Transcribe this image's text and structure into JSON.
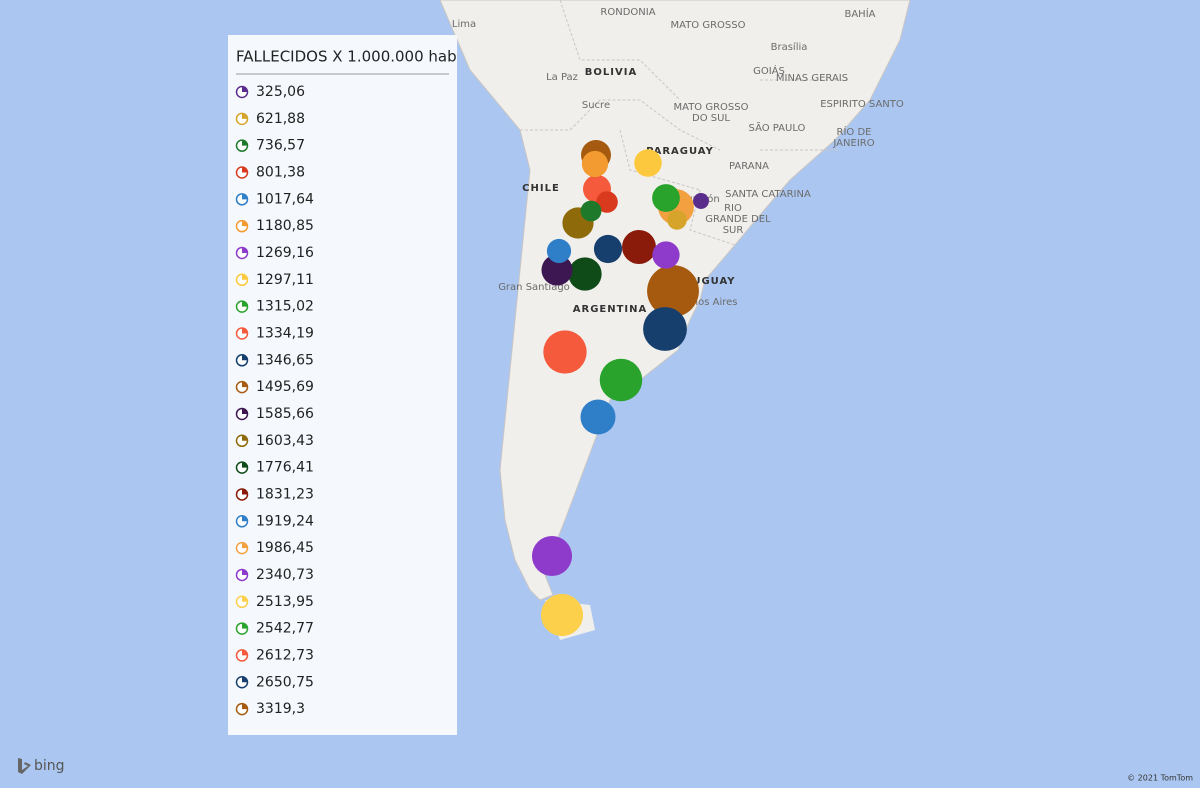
{
  "legend": {
    "title": "FALLECIDOS X 1.000.000 hab",
    "items": [
      {
        "value": 325.06,
        "label": "325,06",
        "color": "#5a2d8c"
      },
      {
        "value": 621.88,
        "label": "621,88",
        "color": "#d6a42a"
      },
      {
        "value": 736.57,
        "label": "736,57",
        "color": "#1e7a2a"
      },
      {
        "value": 801.38,
        "label": "801,38",
        "color": "#d93a1e"
      },
      {
        "value": 1017.64,
        "label": "1017,64",
        "color": "#2f7fc8"
      },
      {
        "value": 1180.85,
        "label": "1180,85",
        "color": "#f39a30"
      },
      {
        "value": 1269.16,
        "label": "1269,16",
        "color": "#8e3acb"
      },
      {
        "value": 1297.11,
        "label": "1297,11",
        "color": "#fcc93e"
      },
      {
        "value": 1315.02,
        "label": "1315,02",
        "color": "#2aa32c"
      },
      {
        "value": 1334.19,
        "label": "1334,19",
        "color": "#f45a3b"
      },
      {
        "value": 1346.65,
        "label": "1346,65",
        "color": "#173f6e"
      },
      {
        "value": 1495.69,
        "label": "1495,69",
        "color": "#a55a10"
      },
      {
        "value": 1585.66,
        "label": "1585,66",
        "color": "#3d1752"
      },
      {
        "value": 1603.43,
        "label": "1603,43",
        "color": "#8f6a0a"
      },
      {
        "value": 1776.41,
        "label": "1776,41",
        "color": "#0f4a19"
      },
      {
        "value": 1831.23,
        "label": "1831,23",
        "color": "#8a1a0a"
      },
      {
        "value": 1919.24,
        "label": "1919,24",
        "color": "#2f7fc8"
      },
      {
        "value": 1986.45,
        "label": "1986,45",
        "color": "#f3a040"
      },
      {
        "value": 2340.73,
        "label": "2340,73",
        "color": "#8e3acb"
      },
      {
        "value": 2513.95,
        "label": "2513,95",
        "color": "#fcd04a"
      },
      {
        "value": 2542.77,
        "label": "2542,77",
        "color": "#2aa32c"
      },
      {
        "value": 2612.73,
        "label": "2612,73",
        "color": "#f45a3b"
      },
      {
        "value": 2650.75,
        "label": "2650,75",
        "color": "#173f6e"
      },
      {
        "value": 3319.3,
        "label": "3319,3",
        "color": "#a55a10"
      }
    ]
  },
  "map_labels": [
    "Lima",
    "RONDONIA",
    "MATO GROSSO",
    "BAHÍA",
    "Brasília",
    "GOIÁS",
    "MINAS GERAIS",
    "La Paz",
    "BOLIVIA",
    "Sucre",
    "MATO GROSSO",
    "DO SUL",
    "ESPIRITO SANTO",
    "SÃO PAULO",
    "RÍO DE",
    "JANEIRO",
    "PARAGUAY",
    "Asunción",
    "PARANA",
    "SANTA CATARINA",
    "RIO",
    "GRANDE DEL",
    "SUR",
    "CHILE",
    "Gran Santiago",
    "ARGENTINA",
    "URUGUAY",
    "Buenos Aires"
  ],
  "footer": {
    "logo": "bing",
    "copyright": "© 2021 TomTom"
  }
}
